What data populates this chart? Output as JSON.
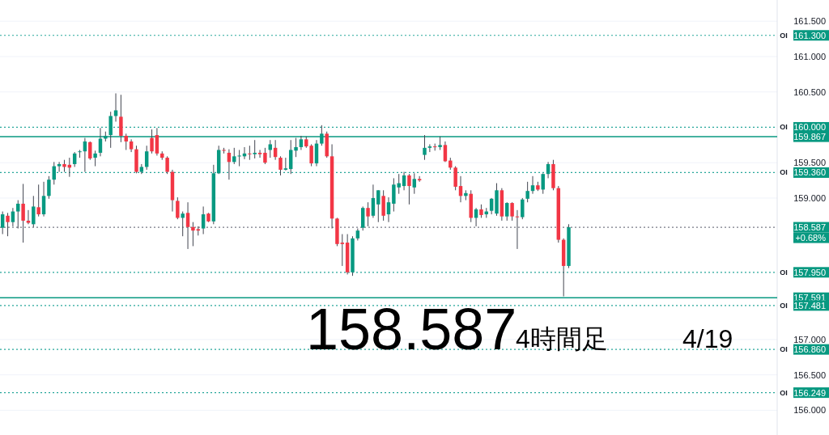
{
  "chart_data": {
    "type": "candlestick",
    "categories": [
      null,
      null,
      null,
      null,
      null,
      null,
      null,
      null,
      null,
      null,
      null,
      null,
      null,
      null,
      null,
      null,
      null,
      null,
      null,
      null,
      null,
      null,
      null,
      null,
      null,
      null,
      null,
      null,
      null,
      null,
      null,
      null,
      null,
      null,
      null,
      null,
      null,
      null,
      null,
      null,
      null,
      null,
      null,
      null,
      null,
      null,
      null,
      null,
      null,
      null,
      null,
      null,
      null,
      null,
      null,
      null,
      null,
      null,
      null,
      null,
      null,
      null,
      null,
      null,
      null,
      null,
      null,
      null,
      null,
      null,
      null,
      null,
      null,
      null,
      null,
      null,
      null,
      null,
      null,
      null,
      null,
      null,
      null,
      null,
      null,
      null,
      null,
      null,
      null,
      null,
      null,
      null,
      null,
      null,
      null,
      null,
      null,
      null,
      null,
      null,
      null,
      null,
      null,
      null,
      null,
      null,
      null,
      null,
      null,
      null,
      null,
      null,
      null,
      null,
      null,
      null,
      null,
      null,
      null,
      null,
      null,
      null,
      null,
      null,
      null,
      null,
      null,
      null,
      null,
      null,
      null,
      null,
      null,
      null,
      null,
      null,
      null,
      null,
      null,
      null,
      null,
      null,
      null,
      null,
      null,
      null,
      null,
      null,
      null,
      null,
      null
    ],
    "ohlc": [
      [
        158.58,
        158.81,
        158.49,
        158.77
      ],
      [
        158.75,
        158.79,
        158.46,
        158.66
      ],
      [
        158.66,
        158.86,
        158.6,
        158.81
      ],
      [
        158.81,
        158.97,
        158.57,
        158.92
      ],
      [
        158.92,
        159.2,
        158.37,
        158.68
      ],
      [
        158.68,
        158.83,
        158.63,
        158.65
      ],
      [
        158.63,
        159.03,
        158.59,
        158.88
      ],
      [
        158.87,
        159.19,
        158.74,
        158.77
      ],
      [
        158.77,
        159.23,
        158.74,
        159.03
      ],
      [
        159.03,
        159.31,
        158.99,
        159.26
      ],
      [
        159.26,
        159.51,
        159.19,
        159.45
      ],
      [
        159.45,
        159.51,
        159.37,
        159.48
      ],
      [
        159.48,
        159.54,
        159.37,
        159.44
      ],
      [
        159.47,
        159.57,
        159.3,
        159.43
      ],
      [
        159.48,
        159.65,
        159.44,
        159.63
      ],
      [
        159.65,
        159.68,
        159.57,
        159.66
      ],
      [
        159.66,
        159.85,
        159.37,
        159.8
      ],
      [
        159.79,
        159.8,
        159.54,
        159.56
      ],
      [
        159.57,
        159.67,
        159.45,
        159.63
      ],
      [
        159.64,
        159.99,
        159.59,
        159.84
      ],
      [
        159.84,
        159.94,
        159.8,
        159.88
      ],
      [
        159.89,
        160.22,
        159.71,
        160.16
      ],
      [
        160.16,
        160.48,
        160.08,
        160.24
      ],
      [
        160.15,
        160.46,
        159.79,
        159.88
      ],
      [
        159.88,
        159.91,
        159.68,
        159.8
      ],
      [
        159.8,
        159.83,
        159.65,
        159.69
      ],
      [
        159.69,
        159.74,
        159.35,
        159.37
      ],
      [
        159.37,
        159.48,
        159.34,
        159.44
      ],
      [
        159.44,
        159.74,
        159.4,
        159.66
      ],
      [
        159.85,
        159.97,
        159.63,
        159.66
      ],
      [
        159.89,
        159.99,
        159.6,
        159.63
      ],
      [
        159.63,
        159.66,
        159.54,
        159.57
      ],
      [
        159.57,
        159.59,
        159.34,
        159.37
      ],
      [
        159.37,
        159.4,
        158.81,
        158.97
      ],
      [
        158.96,
        159.01,
        158.7,
        158.72
      ],
      [
        158.72,
        158.81,
        158.46,
        158.78
      ],
      [
        158.79,
        158.94,
        158.28,
        158.59
      ],
      [
        158.59,
        158.66,
        158.32,
        158.54
      ],
      [
        158.56,
        158.6,
        158.47,
        158.54
      ],
      [
        158.57,
        158.88,
        158.49,
        158.77
      ],
      [
        158.78,
        158.79,
        158.66,
        158.67
      ],
      [
        158.67,
        159.47,
        158.63,
        159.35
      ],
      [
        159.35,
        159.74,
        159.34,
        159.68
      ],
      [
        159.68,
        159.71,
        159.63,
        159.67
      ],
      [
        159.64,
        159.69,
        159.26,
        159.51
      ],
      [
        159.51,
        159.71,
        159.48,
        159.59
      ],
      [
        159.59,
        159.68,
        159.45,
        159.6
      ],
      [
        159.59,
        159.72,
        159.55,
        159.63
      ],
      [
        159.63,
        159.74,
        159.54,
        159.62
      ],
      [
        159.62,
        159.82,
        159.56,
        159.64
      ],
      [
        159.64,
        159.68,
        159.57,
        159.62
      ],
      [
        159.64,
        159.71,
        159.48,
        159.5
      ],
      [
        159.68,
        159.82,
        159.57,
        159.76
      ],
      [
        159.71,
        159.82,
        159.54,
        159.58
      ],
      [
        159.57,
        159.59,
        159.32,
        159.4
      ],
      [
        159.4,
        159.57,
        159.39,
        159.42
      ],
      [
        159.41,
        159.82,
        159.34,
        159.68
      ],
      [
        159.67,
        159.85,
        159.58,
        159.72
      ],
      [
        159.72,
        159.88,
        159.68,
        159.83
      ],
      [
        159.83,
        159.87,
        159.71,
        159.73
      ],
      [
        159.74,
        159.76,
        159.45,
        159.49
      ],
      [
        159.49,
        159.82,
        159.45,
        159.77
      ],
      [
        159.77,
        160.03,
        159.74,
        159.91
      ],
      [
        159.91,
        159.94,
        159.57,
        159.59
      ],
      [
        159.59,
        159.76,
        158.57,
        158.71
      ],
      [
        158.71,
        158.72,
        158.32,
        158.35
      ],
      [
        158.37,
        158.49,
        158.04,
        158.35
      ],
      [
        158.37,
        158.49,
        157.92,
        157.95
      ],
      [
        157.95,
        158.46,
        157.9,
        158.43
      ],
      [
        158.43,
        158.57,
        158.4,
        158.54
      ],
      [
        158.58,
        158.88,
        158.54,
        158.86
      ],
      [
        158.86,
        158.94,
        158.6,
        158.74
      ],
      [
        158.75,
        159.19,
        158.72,
        159.0
      ],
      [
        158.91,
        159.11,
        158.66,
        159.11
      ],
      [
        159.03,
        159.11,
        158.68,
        158.75
      ],
      [
        158.77,
        159.01,
        158.66,
        158.94
      ],
      [
        158.92,
        159.28,
        158.81,
        159.19
      ],
      [
        159.15,
        159.34,
        159.06,
        159.21
      ],
      [
        159.17,
        159.37,
        159.11,
        159.32
      ],
      [
        159.32,
        159.34,
        158.91,
        159.17
      ],
      [
        159.15,
        159.35,
        159.06,
        159.27
      ],
      [
        159.27,
        159.31,
        159.23,
        159.25
      ],
      [
        159.61,
        159.89,
        159.54,
        159.71
      ],
      [
        159.71,
        159.76,
        159.65,
        159.73
      ],
      [
        159.73,
        159.77,
        159.67,
        159.72
      ],
      [
        159.72,
        159.87,
        159.68,
        159.75
      ],
      [
        159.75,
        159.8,
        159.51,
        159.52
      ],
      [
        159.53,
        159.57,
        159.4,
        159.43
      ],
      [
        159.43,
        159.45,
        159.11,
        159.16
      ],
      [
        159.17,
        159.31,
        158.94,
        159.03
      ],
      [
        159.03,
        159.11,
        158.97,
        159.07
      ],
      [
        159.06,
        159.11,
        158.66,
        158.72
      ],
      [
        158.72,
        158.86,
        158.6,
        158.84
      ],
      [
        158.84,
        158.91,
        158.72,
        158.76
      ],
      [
        158.77,
        158.86,
        158.72,
        158.81
      ],
      [
        158.82,
        159.0,
        158.77,
        158.99
      ],
      [
        158.78,
        159.21,
        158.75,
        159.11
      ],
      [
        159.11,
        159.14,
        158.68,
        158.74
      ],
      [
        158.74,
        158.94,
        158.68,
        158.93
      ],
      [
        158.93,
        158.94,
        158.68,
        158.74
      ],
      [
        158.74,
        158.83,
        158.28,
        158.73
      ],
      [
        158.73,
        159.0,
        158.7,
        158.98
      ],
      [
        158.99,
        159.23,
        158.94,
        159.1
      ],
      [
        159.1,
        159.31,
        159.06,
        159.18
      ],
      [
        159.18,
        159.23,
        159.1,
        159.12
      ],
      [
        159.12,
        159.35,
        159.06,
        159.34
      ],
      [
        159.34,
        159.51,
        159.28,
        159.48
      ],
      [
        159.48,
        159.54,
        159.11,
        159.14
      ],
      [
        159.14,
        159.17,
        158.37,
        158.41
      ],
      [
        158.41,
        158.43,
        157.61,
        158.04
      ],
      [
        158.04,
        158.63,
        158.01,
        158.587
      ],
      null,
      null,
      null,
      null,
      null,
      null,
      null,
      null,
      null,
      null,
      null,
      null,
      null,
      null,
      null,
      null,
      null,
      null,
      null,
      null,
      null,
      null,
      null,
      null,
      null,
      null,
      null,
      null,
      null,
      null,
      null,
      null,
      null,
      null,
      null,
      null,
      null,
      null,
      null,
      null
    ],
    "ylim": [
      155.65,
      161.8
    ],
    "yticks": [
      {
        "value": 156.0,
        "label": "156.000"
      },
      {
        "value": 156.5,
        "label": "156.500"
      },
      {
        "value": 157.0,
        "label": "157.000"
      },
      {
        "value": 159.0,
        "label": "159.000"
      },
      {
        "value": 159.5,
        "label": "159.500"
      },
      {
        "value": 160.5,
        "label": "160.500"
      },
      {
        "value": 161.0,
        "label": "161.000"
      },
      {
        "value": 161.5,
        "label": "161.500"
      }
    ],
    "grid": "y",
    "ref_lines": [
      {
        "axis": "y",
        "value": 161.3,
        "label": "161.300",
        "color": "#26a69a",
        "line_style": "dotted"
      },
      {
        "axis": "y",
        "value": 160.0,
        "label": "160.000",
        "color": "#26a69a",
        "line_style": "dotted"
      },
      {
        "axis": "y",
        "value": 159.867,
        "label": "159.867",
        "color": "#089981",
        "line_style": "solid"
      },
      {
        "axis": "y",
        "value": 159.36,
        "label": "159.360",
        "color": "#26a69a",
        "line_style": "dotted"
      },
      {
        "axis": "y",
        "value": 158.587,
        "label": "158.587",
        "color": "#787b86",
        "line_style": "dotted"
      },
      {
        "axis": "y",
        "value": 157.95,
        "label": "157.950",
        "color": "#26a69a",
        "line_style": "dotted"
      },
      {
        "axis": "y",
        "value": 157.591,
        "label": "157.591",
        "color": "#089981",
        "line_style": "solid"
      },
      {
        "axis": "y",
        "value": 157.481,
        "label": "157.481",
        "color": "#26a69a",
        "line_style": "dotted"
      },
      {
        "axis": "y",
        "value": 156.86,
        "label": "156.860",
        "color": "#26a69a",
        "line_style": "dotted"
      },
      {
        "axis": "y",
        "value": 156.249,
        "label": "156.249",
        "color": "#26a69a",
        "line_style": "dotted"
      }
    ],
    "annotations": [
      "158.587",
      "4時間足",
      "4/19",
      "+0.68%",
      "OI",
      "OI",
      "OI",
      "OI",
      "OI",
      "OI",
      "OI"
    ]
  }
}
